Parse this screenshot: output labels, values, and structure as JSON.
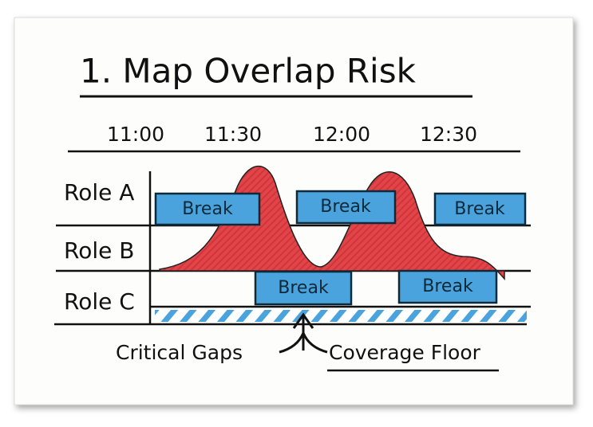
{
  "header": {
    "title": "1. Map Overlap Risk"
  },
  "times": [
    "11:00",
    "11:30",
    "12:00",
    "12:30"
  ],
  "roles": [
    "Role A",
    "Role B",
    "Role C"
  ],
  "breaks": {
    "role_a": [
      "Break",
      "Break",
      "Break"
    ],
    "role_c": [
      "Break",
      "Break"
    ]
  },
  "annotations": {
    "left": "Critical Gaps",
    "right": "Coverage Floor"
  }
}
